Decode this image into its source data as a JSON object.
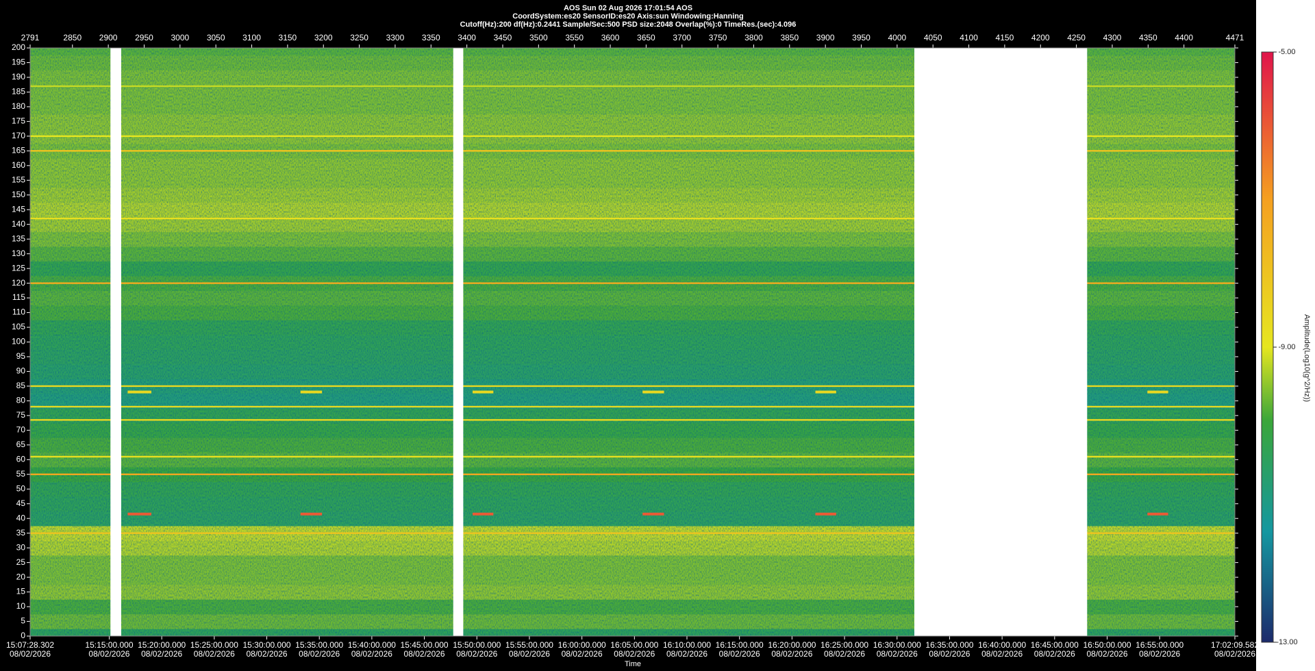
{
  "chart_data": {
    "type": "spectrogram",
    "title": "AOS  Sun 02 Aug 2026 17:01:54  AOS",
    "subtitle": "CoordSystem:es20   SensorID:es20    Axis:sun    Windowing:Hanning",
    "parameters": "Cutoff(Hz):200      df(Hz):0.2441       Sample/Sec:500       PSD size:2048       Overlap(%):0       TimeRes.(sec):4.096",
    "xlabel": "Time",
    "date": "08/02/2026",
    "xlim": [
      2791,
      4471
    ],
    "xticks": [
      2791,
      2850,
      2900,
      2950,
      3000,
      3050,
      3100,
      3150,
      3200,
      3250,
      3300,
      3350,
      3400,
      3450,
      3500,
      3550,
      3600,
      3650,
      3700,
      3750,
      3800,
      3850,
      3900,
      3950,
      4000,
      4050,
      4100,
      4150,
      4200,
      4250,
      4300,
      4350,
      4400,
      4471
    ],
    "x2lim": [
      54448.302,
      61329.582
    ],
    "x2ticks": [
      {
        "value": 54448.302,
        "label": "15:07:28.302"
      },
      {
        "value": 54900,
        "label": "15:15:00.000"
      },
      {
        "value": 55200,
        "label": "15:20:00.000"
      },
      {
        "value": 55500,
        "label": "15:25:00.000"
      },
      {
        "value": 55800,
        "label": "15:30:00.000"
      },
      {
        "value": 56100,
        "label": "15:35:00.000"
      },
      {
        "value": 56400,
        "label": "15:40:00.000"
      },
      {
        "value": 56700,
        "label": "15:45:00.000"
      },
      {
        "value": 57000,
        "label": "15:50:00.000"
      },
      {
        "value": 57300,
        "label": "15:55:00.000"
      },
      {
        "value": 57600,
        "label": "16:00:00.000"
      },
      {
        "value": 57900,
        "label": "16:05:00.000"
      },
      {
        "value": 58200,
        "label": "16:10:00.000"
      },
      {
        "value": 58500,
        "label": "16:15:00.000"
      },
      {
        "value": 58800,
        "label": "16:20:00.000"
      },
      {
        "value": 59100,
        "label": "16:25:00.000"
      },
      {
        "value": 59400,
        "label": "16:30:00.000"
      },
      {
        "value": 59700,
        "label": "16:35:00.000"
      },
      {
        "value": 60000,
        "label": "16:40:00.000"
      },
      {
        "value": 60300,
        "label": "16:45:00.000"
      },
      {
        "value": 60600,
        "label": "16:50:00.000"
      },
      {
        "value": 60900,
        "label": "16:55:00.000"
      },
      {
        "value": 61329.582,
        "label": "17:02:09.582"
      }
    ],
    "ylim": [
      0,
      200
    ],
    "yticks": [
      0,
      5,
      10,
      15,
      20,
      25,
      30,
      35,
      40,
      45,
      50,
      55,
      60,
      65,
      70,
      75,
      80,
      85,
      90,
      95,
      100,
      105,
      110,
      115,
      120,
      125,
      130,
      135,
      140,
      145,
      150,
      155,
      160,
      165,
      170,
      175,
      180,
      185,
      190,
      195,
      200
    ],
    "colorbar_label": "Amplitude(Log10(g^2/Hz))",
    "clim": [
      -13,
      -5
    ],
    "cticks": [
      {
        "value": -5,
        "label": "-5.00"
      },
      {
        "value": -9,
        "label": "-9.00"
      },
      {
        "value": -13,
        "label": "-13.00"
      }
    ],
    "colormap": [
      {
        "value": -13,
        "color": "#1c2a6b"
      },
      {
        "value": -11.5,
        "color": "#1597a0"
      },
      {
        "value": -10,
        "color": "#3aa63a"
      },
      {
        "value": -9,
        "color": "#e6e620"
      },
      {
        "value": -7,
        "color": "#f5a020"
      },
      {
        "value": -5,
        "color": "#e0144a"
      }
    ],
    "profile_frequencies": [
      0,
      5,
      10,
      15,
      20,
      25,
      30,
      35,
      40,
      45,
      50,
      55,
      60,
      65,
      70,
      75,
      80,
      85,
      90,
      95,
      100,
      105,
      110,
      115,
      120,
      125,
      130,
      135,
      140,
      145,
      150,
      155,
      160,
      165,
      170,
      175,
      180,
      185,
      190,
      195,
      200
    ],
    "profile_values": [
      -10.4,
      -9.7,
      -9.9,
      -9.5,
      -9.6,
      -9.6,
      -9.3,
      -9.2,
      -10.5,
      -10.4,
      -10.3,
      -10.0,
      -9.8,
      -9.9,
      -10.1,
      -10.3,
      -10.9,
      -10.8,
      -10.6,
      -10.5,
      -10.4,
      -10.3,
      -9.9,
      -9.8,
      -9.9,
      -10.2,
      -9.8,
      -9.6,
      -9.4,
      -9.3,
      -9.4,
      -9.5,
      -9.5,
      -9.6,
      -9.5,
      -9.5,
      -9.6,
      -9.6,
      -9.6,
      -9.7,
      -9.8
    ],
    "gaps": [
      [
        2903,
        2918
      ],
      [
        3381,
        3395
      ],
      [
        4024,
        4265
      ]
    ],
    "tonal_lines": [
      {
        "frequency": 187,
        "amplitude": -9.2
      },
      {
        "frequency": 170,
        "amplitude": -9.0
      },
      {
        "frequency": 165,
        "amplitude": -8.0
      },
      {
        "frequency": 142,
        "amplitude": -8.8
      },
      {
        "frequency": 120,
        "amplitude": -7.3
      },
      {
        "frequency": 85,
        "amplitude": -8.6
      },
      {
        "frequency": 78,
        "amplitude": -8.7
      },
      {
        "frequency": 73.5,
        "amplitude": -8.6
      },
      {
        "frequency": 61,
        "amplitude": -8.8
      },
      {
        "frequency": 55,
        "amplitude": -7.2
      },
      {
        "frequency": 35,
        "amplitude": -8.0
      }
    ],
    "events": [
      {
        "start": 2927,
        "end": 2960,
        "frequency": 83,
        "amplitude": -8.6
      },
      {
        "start": 3168,
        "end": 3198,
        "frequency": 83,
        "amplitude": -8.6
      },
      {
        "start": 3408,
        "end": 3437,
        "frequency": 83,
        "amplitude": -8.6
      },
      {
        "start": 3645,
        "end": 3675,
        "frequency": 83,
        "amplitude": -8.6
      },
      {
        "start": 3886,
        "end": 3915,
        "frequency": 83,
        "amplitude": -8.6
      },
      {
        "start": 4349,
        "end": 4378,
        "frequency": 83,
        "amplitude": -8.6
      },
      {
        "start": 2927,
        "end": 2960,
        "frequency": 41.5,
        "amplitude": -6.0
      },
      {
        "start": 3168,
        "end": 3198,
        "frequency": 41.5,
        "amplitude": -6.0
      },
      {
        "start": 3408,
        "end": 3437,
        "frequency": 41.5,
        "amplitude": -6.0
      },
      {
        "start": 3645,
        "end": 3675,
        "frequency": 41.5,
        "amplitude": -6.0
      },
      {
        "start": 3886,
        "end": 3915,
        "frequency": 41.5,
        "amplitude": -6.0
      },
      {
        "start": 4349,
        "end": 4378,
        "frequency": 41.5,
        "amplitude": -6.0
      }
    ]
  }
}
